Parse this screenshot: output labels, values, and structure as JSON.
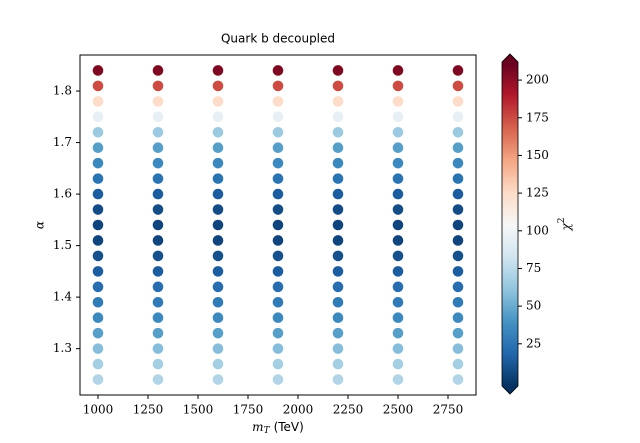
{
  "chart_data": {
    "type": "scatter",
    "title": "Quark b decoupled",
    "xlabel_symbol": "m",
    "xlabel_sub": "T",
    "xlabel_unit": "(TeV)",
    "ylabel": "α",
    "colorbar_symbol": "χ",
    "colorbar_sup": "2",
    "cmap": "RdBu_r",
    "x": [
      1000,
      1000,
      1000,
      1000,
      1000,
      1000,
      1000,
      1000,
      1000,
      1000,
      1000,
      1000,
      1000,
      1000,
      1000,
      1000,
      1000,
      1000,
      1000,
      1000,
      1000,
      1300,
      1300,
      1300,
      1300,
      1300,
      1300,
      1300,
      1300,
      1300,
      1300,
      1300,
      1300,
      1300,
      1300,
      1300,
      1300,
      1300,
      1300,
      1300,
      1300,
      1300,
      1600,
      1600,
      1600,
      1600,
      1600,
      1600,
      1600,
      1600,
      1600,
      1600,
      1600,
      1600,
      1600,
      1600,
      1600,
      1600,
      1600,
      1600,
      1600,
      1600,
      1600,
      1900,
      1900,
      1900,
      1900,
      1900,
      1900,
      1900,
      1900,
      1900,
      1900,
      1900,
      1900,
      1900,
      1900,
      1900,
      1900,
      1900,
      1900,
      1900,
      1900,
      1900,
      2200,
      2200,
      2200,
      2200,
      2200,
      2200,
      2200,
      2200,
      2200,
      2200,
      2200,
      2200,
      2200,
      2200,
      2200,
      2200,
      2200,
      2200,
      2200,
      2200,
      2200,
      2500,
      2500,
      2500,
      2500,
      2500,
      2500,
      2500,
      2500,
      2500,
      2500,
      2500,
      2500,
      2500,
      2500,
      2500,
      2500,
      2500,
      2500,
      2500,
      2500,
      2500,
      2800,
      2800,
      2800,
      2800,
      2800,
      2800,
      2800,
      2800,
      2800,
      2800,
      2800,
      2800,
      2800,
      2800,
      2800,
      2800,
      2800,
      2800,
      2800,
      2800,
      2800
    ],
    "y": [
      1.24,
      1.27,
      1.3,
      1.33,
      1.36,
      1.39,
      1.42,
      1.45,
      1.48,
      1.51,
      1.54,
      1.57,
      1.6,
      1.63,
      1.66,
      1.69,
      1.72,
      1.75,
      1.78,
      1.81,
      1.84,
      1.24,
      1.27,
      1.3,
      1.33,
      1.36,
      1.39,
      1.42,
      1.45,
      1.48,
      1.51,
      1.54,
      1.57,
      1.6,
      1.63,
      1.66,
      1.69,
      1.72,
      1.75,
      1.78,
      1.81,
      1.84,
      1.24,
      1.27,
      1.3,
      1.33,
      1.36,
      1.39,
      1.42,
      1.45,
      1.48,
      1.51,
      1.54,
      1.57,
      1.6,
      1.63,
      1.66,
      1.69,
      1.72,
      1.75,
      1.78,
      1.81,
      1.84,
      1.24,
      1.27,
      1.3,
      1.33,
      1.36,
      1.39,
      1.42,
      1.45,
      1.48,
      1.51,
      1.54,
      1.57,
      1.6,
      1.63,
      1.66,
      1.69,
      1.72,
      1.75,
      1.78,
      1.81,
      1.84,
      1.24,
      1.27,
      1.3,
      1.33,
      1.36,
      1.39,
      1.42,
      1.45,
      1.48,
      1.51,
      1.54,
      1.57,
      1.6,
      1.63,
      1.66,
      1.69,
      1.72,
      1.75,
      1.78,
      1.81,
      1.84,
      1.24,
      1.27,
      1.3,
      1.33,
      1.36,
      1.39,
      1.42,
      1.45,
      1.48,
      1.51,
      1.54,
      1.57,
      1.6,
      1.63,
      1.66,
      1.69,
      1.72,
      1.75,
      1.78,
      1.81,
      1.84,
      1.24,
      1.27,
      1.3,
      1.33,
      1.36,
      1.39,
      1.42,
      1.45,
      1.48,
      1.51,
      1.54,
      1.57,
      1.6,
      1.63,
      1.66,
      1.69,
      1.72,
      1.75,
      1.78,
      1.81,
      1.84
    ],
    "chi2": [
      72,
      68,
      58,
      45,
      35,
      28,
      22,
      15,
      10,
      5,
      5,
      8,
      15,
      25,
      35,
      45,
      65,
      95,
      125,
      175,
      205,
      72,
      68,
      58,
      45,
      35,
      28,
      22,
      15,
      10,
      5,
      5,
      8,
      15,
      25,
      35,
      45,
      65,
      95,
      125,
      175,
      205,
      72,
      68,
      58,
      45,
      35,
      28,
      22,
      15,
      10,
      5,
      5,
      8,
      15,
      25,
      35,
      45,
      65,
      95,
      125,
      175,
      205,
      72,
      68,
      58,
      45,
      35,
      28,
      22,
      15,
      10,
      5,
      5,
      8,
      15,
      25,
      35,
      45,
      65,
      95,
      125,
      175,
      205,
      72,
      68,
      58,
      45,
      35,
      28,
      22,
      15,
      10,
      5,
      5,
      8,
      15,
      25,
      35,
      45,
      65,
      95,
      125,
      175,
      205,
      72,
      68,
      58,
      45,
      35,
      28,
      22,
      15,
      10,
      5,
      5,
      8,
      15,
      25,
      35,
      45,
      65,
      95,
      125,
      175,
      205,
      72,
      68,
      58,
      45,
      35,
      28,
      22,
      15,
      10,
      5,
      5,
      8,
      15,
      25,
      35,
      45,
      65,
      95,
      125,
      175,
      205
    ],
    "xlim": [
      910,
      2890
    ],
    "xticks": [
      1000,
      1250,
      1500,
      1750,
      2000,
      2250,
      2500,
      2750
    ],
    "ylim": [
      1.21,
      1.87
    ],
    "yticks": [
      1.3,
      1.4,
      1.5,
      1.6,
      1.7,
      1.8
    ],
    "clim": [
      -3,
      212
    ],
    "cticks": [
      25,
      50,
      75,
      100,
      125,
      150,
      175,
      200
    ]
  }
}
